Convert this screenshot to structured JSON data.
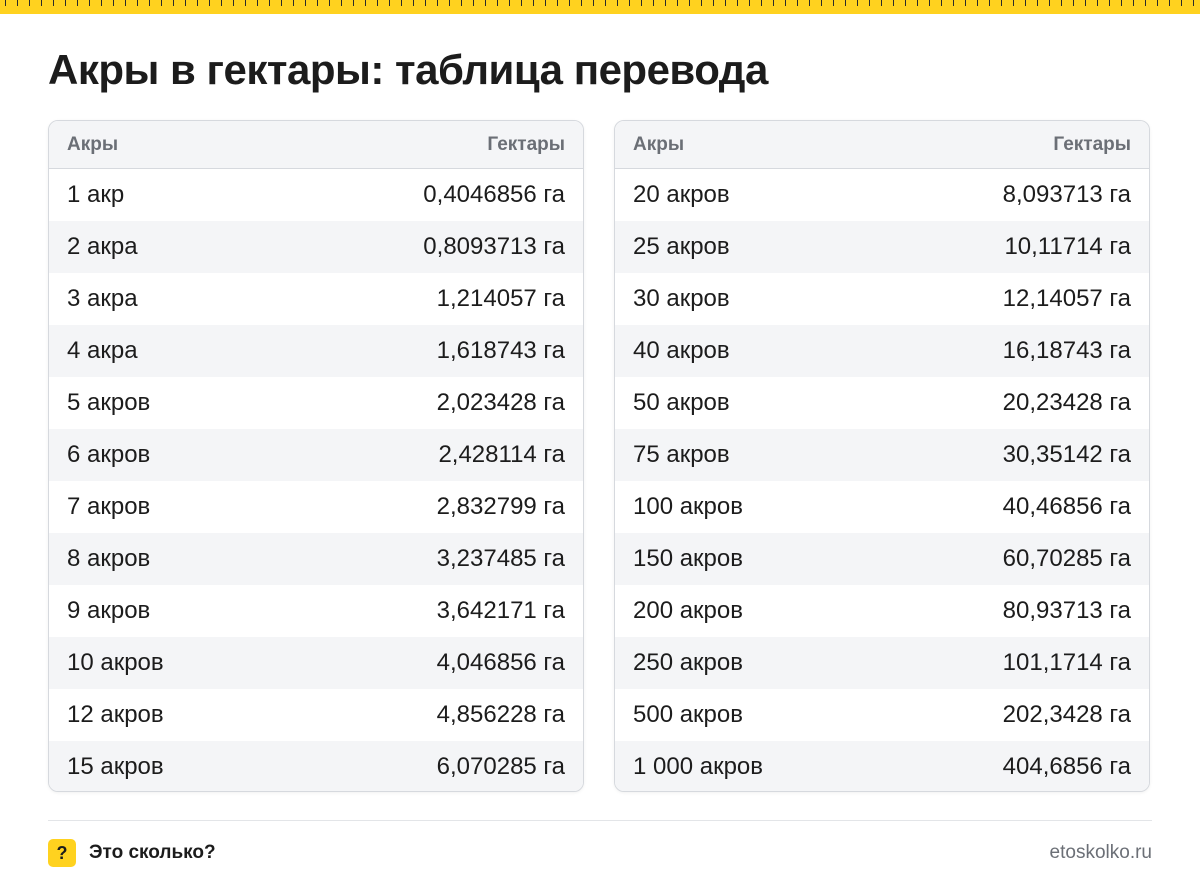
{
  "title": "Акры в гектары: таблица перевода",
  "colors": {
    "accent": "#ffd21f",
    "text": "#1c1c1c",
    "muted": "#6b6f76",
    "stripe": "#f4f5f7",
    "border": "#d6d9de"
  },
  "tables": [
    {
      "col_left": "Акры",
      "col_right": "Гектары",
      "rows": [
        [
          "1 акр",
          "0,4046856 га"
        ],
        [
          "2 акра",
          "0,8093713 га"
        ],
        [
          "3 акра",
          "1,214057 га"
        ],
        [
          "4 акра",
          "1,618743 га"
        ],
        [
          "5 акров",
          "2,023428 га"
        ],
        [
          "6 акров",
          "2,428114 га"
        ],
        [
          "7 акров",
          "2,832799 га"
        ],
        [
          "8 акров",
          "3,237485 га"
        ],
        [
          "9 акров",
          "3,642171 га"
        ],
        [
          "10 акров",
          "4,046856 га"
        ],
        [
          "12 акров",
          "4,856228 га"
        ],
        [
          "15 акров",
          "6,070285 га"
        ]
      ]
    },
    {
      "col_left": "Акры",
      "col_right": "Гектары",
      "rows": [
        [
          "20 акров",
          "8,093713 га"
        ],
        [
          "25 акров",
          "10,11714 га"
        ],
        [
          "30 акров",
          "12,14057 га"
        ],
        [
          "40 акров",
          "16,18743 га"
        ],
        [
          "50 акров",
          "20,23428 га"
        ],
        [
          "75 акров",
          "30,35142 га"
        ],
        [
          "100 акров",
          "40,46856 га"
        ],
        [
          "150 акров",
          "60,70285 га"
        ],
        [
          "200 акров",
          "80,93713 га"
        ],
        [
          "250 акров",
          "101,1714 га"
        ],
        [
          "500 акров",
          "202,3428 га"
        ],
        [
          "1 000 акров",
          "404,6856 га"
        ]
      ]
    }
  ],
  "footer": {
    "badge": "?",
    "badge_icon": "question-icon",
    "brand": "Это сколько?",
    "site": "etoskolko.ru"
  }
}
